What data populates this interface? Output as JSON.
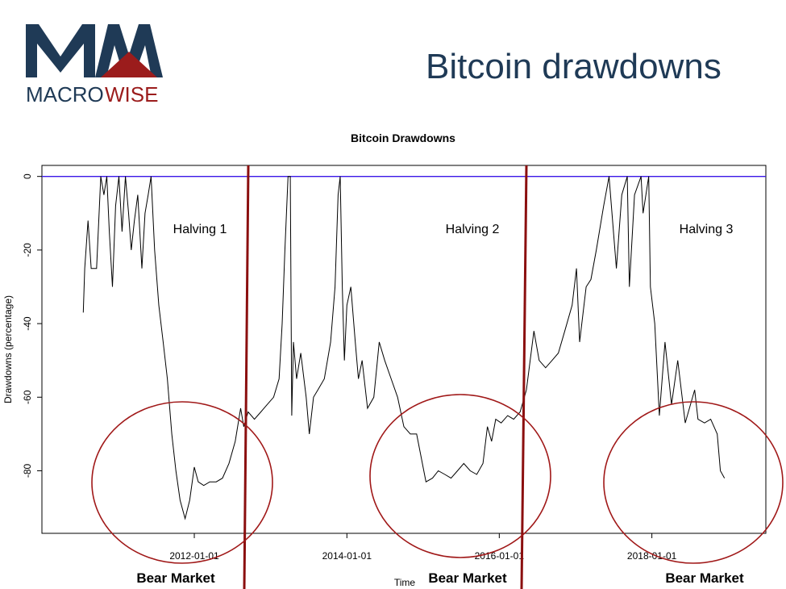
{
  "slide": {
    "title": "Bitcoin drawdowns",
    "logo_text_a": "MACRO",
    "logo_text_b": "WISE",
    "logo_mark": "MW",
    "colors": {
      "navy": "#1f3a56",
      "brand_red": "#9b1c1c",
      "zero_line": "#3a17e6"
    }
  },
  "chart_data": {
    "type": "line",
    "title": "Bitcoin Drawdowns",
    "xlabel": "Time",
    "ylabel": "Drawdowns (percentage)",
    "ylim": [
      -97,
      3
    ],
    "xlim": [
      "2010-01-01",
      "2019-07-01"
    ],
    "y_ticks": [
      0,
      -20,
      -40,
      -60,
      -80
    ],
    "x_ticks": [
      "2012-01-01",
      "2014-01-01",
      "2016-01-01",
      "2018-01-01"
    ],
    "series": [
      {
        "values": [
          [
            "2010-07-18",
            -37
          ],
          [
            "2010-07-25",
            -25
          ],
          [
            "2010-08-10",
            -12
          ],
          [
            "2010-08-25",
            -25
          ],
          [
            "2010-09-20",
            -25
          ],
          [
            "2010-10-10",
            0
          ],
          [
            "2010-10-25",
            -5
          ],
          [
            "2010-11-08",
            0
          ],
          [
            "2010-11-20",
            -15
          ],
          [
            "2010-12-05",
            -30
          ],
          [
            "2010-12-20",
            -8
          ],
          [
            "2011-01-05",
            0
          ],
          [
            "2011-01-20",
            -15
          ],
          [
            "2011-02-05",
            0
          ],
          [
            "2011-02-20",
            -10
          ],
          [
            "2011-03-05",
            -20
          ],
          [
            "2011-03-20",
            -12
          ],
          [
            "2011-04-05",
            -5
          ],
          [
            "2011-04-25",
            -25
          ],
          [
            "2011-05-10",
            -10
          ],
          [
            "2011-05-25",
            -5
          ],
          [
            "2011-06-08",
            0
          ],
          [
            "2011-06-25",
            -20
          ],
          [
            "2011-07-15",
            -35
          ],
          [
            "2011-08-05",
            -45
          ],
          [
            "2011-08-25",
            -55
          ],
          [
            "2011-09-15",
            -70
          ],
          [
            "2011-10-05",
            -80
          ],
          [
            "2011-10-25",
            -88
          ],
          [
            "2011-11-18",
            -93
          ],
          [
            "2011-12-10",
            -88
          ],
          [
            "2012-01-01",
            -79
          ],
          [
            "2012-01-20",
            -83
          ],
          [
            "2012-02-15",
            -84
          ],
          [
            "2012-03-15",
            -83
          ],
          [
            "2012-04-15",
            -83
          ],
          [
            "2012-05-15",
            -82
          ],
          [
            "2012-06-15",
            -78
          ],
          [
            "2012-07-15",
            -72
          ],
          [
            "2012-08-10",
            -63
          ],
          [
            "2012-08-25",
            -68
          ],
          [
            "2012-09-15",
            -64
          ],
          [
            "2012-10-15",
            -66
          ],
          [
            "2012-11-15",
            -64
          ],
          [
            "2012-12-15",
            -62
          ],
          [
            "2013-01-15",
            -60
          ],
          [
            "2013-02-10",
            -55
          ],
          [
            "2013-02-25",
            -40
          ],
          [
            "2013-03-10",
            -20
          ],
          [
            "2013-03-25",
            0
          ],
          [
            "2013-04-05",
            0
          ],
          [
            "2013-04-12",
            -65
          ],
          [
            "2013-04-20",
            -45
          ],
          [
            "2013-05-05",
            -55
          ],
          [
            "2013-05-25",
            -48
          ],
          [
            "2013-06-20",
            -60
          ],
          [
            "2013-07-05",
            -70
          ],
          [
            "2013-07-25",
            -60
          ],
          [
            "2013-08-15",
            -58
          ],
          [
            "2013-09-15",
            -55
          ],
          [
            "2013-10-15",
            -45
          ],
          [
            "2013-11-05",
            -30
          ],
          [
            "2013-11-20",
            -5
          ],
          [
            "2013-11-30",
            0
          ],
          [
            "2013-12-10",
            -30
          ],
          [
            "2013-12-20",
            -50
          ],
          [
            "2014-01-01",
            -35
          ],
          [
            "2014-01-20",
            -30
          ],
          [
            "2014-02-10",
            -45
          ],
          [
            "2014-02-25",
            -55
          ],
          [
            "2014-03-15",
            -50
          ],
          [
            "2014-04-10",
            -63
          ],
          [
            "2014-05-10",
            -60
          ],
          [
            "2014-06-05",
            -45
          ],
          [
            "2014-07-01",
            -50
          ],
          [
            "2014-08-01",
            -55
          ],
          [
            "2014-09-01",
            -60
          ],
          [
            "2014-10-01",
            -68
          ],
          [
            "2014-11-01",
            -70
          ],
          [
            "2014-12-01",
            -70
          ],
          [
            "2015-01-15",
            -83
          ],
          [
            "2015-02-15",
            -82
          ],
          [
            "2015-03-15",
            -80
          ],
          [
            "2015-04-15",
            -81
          ],
          [
            "2015-05-15",
            -82
          ],
          [
            "2015-06-15",
            -80
          ],
          [
            "2015-07-15",
            -78
          ],
          [
            "2015-08-15",
            -80
          ],
          [
            "2015-09-15",
            -81
          ],
          [
            "2015-10-15",
            -78
          ],
          [
            "2015-11-05",
            -68
          ],
          [
            "2015-11-25",
            -72
          ],
          [
            "2015-12-15",
            -66
          ],
          [
            "2016-01-10",
            -67
          ],
          [
            "2016-02-10",
            -65
          ],
          [
            "2016-03-10",
            -66
          ],
          [
            "2016-04-10",
            -64
          ],
          [
            "2016-05-10",
            -58
          ],
          [
            "2016-06-15",
            -42
          ],
          [
            "2016-07-10",
            -50
          ],
          [
            "2016-08-10",
            -52
          ],
          [
            "2016-09-10",
            -50
          ],
          [
            "2016-10-10",
            -48
          ],
          [
            "2016-11-10",
            -42
          ],
          [
            "2016-12-15",
            -35
          ],
          [
            "2017-01-05",
            -25
          ],
          [
            "2017-01-20",
            -45
          ],
          [
            "2017-02-20",
            -30
          ],
          [
            "2017-03-15",
            -28
          ],
          [
            "2017-04-10",
            -20
          ],
          [
            "2017-05-15",
            -8
          ],
          [
            "2017-06-10",
            0
          ],
          [
            "2017-07-15",
            -25
          ],
          [
            "2017-08-10",
            -5
          ],
          [
            "2017-09-05",
            0
          ],
          [
            "2017-09-15",
            -30
          ],
          [
            "2017-10-10",
            -5
          ],
          [
            "2017-11-10",
            0
          ],
          [
            "2017-11-20",
            -10
          ],
          [
            "2017-12-17",
            0
          ],
          [
            "2017-12-25",
            -30
          ],
          [
            "2018-01-15",
            -40
          ],
          [
            "2018-02-06",
            -65
          ],
          [
            "2018-03-05",
            -45
          ],
          [
            "2018-04-05",
            -62
          ],
          [
            "2018-05-05",
            -50
          ],
          [
            "2018-06-10",
            -67
          ],
          [
            "2018-07-25",
            -58
          ],
          [
            "2018-08-10",
            -66
          ],
          [
            "2018-09-10",
            -67
          ],
          [
            "2018-10-10",
            -66
          ],
          [
            "2018-11-10",
            -70
          ],
          [
            "2018-11-25",
            -80
          ],
          [
            "2018-12-15",
            -82
          ]
        ]
      }
    ],
    "annotations": {
      "halvings": [
        "Halving 1",
        "Halving 2",
        "Halving 3"
      ],
      "bear_markets": [
        "Bear Market",
        "Bear Market",
        "Bear Market"
      ]
    }
  }
}
